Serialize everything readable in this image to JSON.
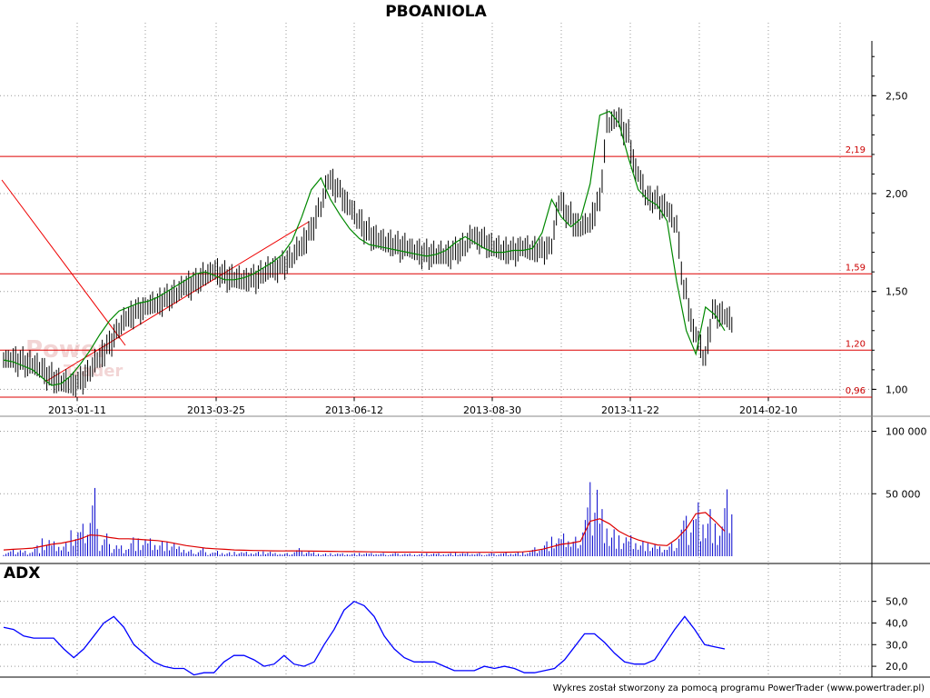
{
  "chart_data": [
    {
      "type": "line",
      "panel": "price",
      "title": "PBOANIOLA",
      "x_ticks": [
        "2013-01-11",
        "2013-03-25",
        "2013-06-12",
        "2013-08-30",
        "2013-11-22",
        "2014-02-10"
      ],
      "y_ticks": [
        "1,00",
        "1,50",
        "2,00",
        "2,50"
      ],
      "ylim": [
        0.96,
        2.78
      ],
      "grid": true,
      "levels": [
        {
          "value": 2.19,
          "label": "2,19"
        },
        {
          "value": 1.59,
          "label": "1,59"
        },
        {
          "value": 1.2,
          "label": "1,20"
        },
        {
          "value": 0.96,
          "label": "0,96"
        }
      ],
      "series": [
        {
          "values": [
            1.15,
            1.14,
            1.12,
            1.1,
            1.06,
            1.03,
            1.02,
            1.04,
            1.08,
            1.15,
            1.22,
            1.3,
            1.36,
            1.4,
            1.42,
            1.43,
            1.46,
            1.48,
            1.52,
            1.54,
            1.57,
            1.6,
            1.58,
            1.56,
            1.55,
            1.56,
            1.58,
            1.61,
            1.63,
            1.66,
            1.72,
            1.8,
            1.92,
            2.06,
            2.02,
            1.93,
            1.86,
            1.8,
            1.76,
            1.74,
            1.73,
            1.72,
            1.7,
            1.69,
            1.68,
            1.68,
            1.7,
            1.72,
            1.78,
            1.76,
            1.72,
            1.7,
            1.7,
            1.72,
            1.7,
            1.71,
            1.73,
            1.95,
            1.88,
            1.82,
            1.84,
            1.95,
            2.35,
            2.38,
            2.3,
            2.1,
            1.98,
            1.96,
            1.92,
            1.84,
            1.5,
            1.28,
            1.16,
            1.4,
            1.37,
            1.33
          ]
        },
        {
          "values": [
            1.15,
            1.14,
            1.12,
            1.1,
            1.06,
            1.02,
            1.03,
            1.07,
            1.13,
            1.2,
            1.28,
            1.35,
            1.4,
            1.42,
            1.44,
            1.45,
            1.47,
            1.5,
            1.53,
            1.56,
            1.59,
            1.6,
            1.58,
            1.56,
            1.56,
            1.57,
            1.59,
            1.62,
            1.65,
            1.69,
            1.76,
            1.88,
            2.02,
            2.08,
            1.97,
            1.89,
            1.82,
            1.77,
            1.74,
            1.73,
            1.72,
            1.71,
            1.7,
            1.69,
            1.68,
            1.69,
            1.71,
            1.75,
            1.78,
            1.75,
            1.72,
            1.7,
            1.7,
            1.71,
            1.71,
            1.72,
            1.8,
            1.97,
            1.88,
            1.83,
            1.87,
            2.05,
            2.4,
            2.42,
            2.36,
            2.18,
            2.02,
            1.97,
            1.94,
            1.86,
            1.55,
            1.3,
            1.18,
            1.42,
            1.38,
            1.3
          ]
        }
      ]
    },
    {
      "type": "bar",
      "panel": "volume",
      "y_ticks": [
        "50 000",
        "100 000"
      ],
      "ylim": [
        0,
        112000
      ],
      "values": [
        3000,
        5000,
        4000,
        8000,
        12000,
        10000,
        9000,
        16000,
        20000,
        42000,
        14000,
        9000,
        8000,
        14000,
        12000,
        12000,
        10000,
        9000,
        6000,
        4000,
        5000,
        3000,
        4000,
        3000,
        3000,
        3000,
        3000,
        3000,
        2000,
        2000,
        5000,
        4000,
        3000,
        2000,
        2000,
        2000,
        2000,
        2000,
        2000,
        2000,
        2000,
        2000,
        2000,
        2000,
        2000,
        2000,
        2000,
        2000,
        2000,
        2000,
        2000,
        2000,
        3000,
        3000,
        3000,
        6000,
        10000,
        12000,
        14000,
        12000,
        30000,
        55000,
        35000,
        20000,
        14000,
        14000,
        10000,
        8000,
        6000,
        8000,
        22000,
        30000,
        40000,
        35000,
        22000,
        45000
      ],
      "series": [
        {
          "values": [
            5000,
            5500,
            6000,
            6500,
            8000,
            9500,
            10500,
            12000,
            14000,
            17000,
            16500,
            15000,
            14000,
            14000,
            13500,
            13000,
            12500,
            11500,
            10000,
            8500,
            7500,
            6500,
            6000,
            5500,
            5000,
            4800,
            4600,
            4500,
            4300,
            4200,
            4300,
            4200,
            4100,
            4000,
            3900,
            3800,
            3700,
            3600,
            3500,
            3400,
            3300,
            3300,
            3300,
            3300,
            3200,
            3200,
            3200,
            3200,
            3100,
            3100,
            3100,
            3100,
            3200,
            3300,
            3500,
            4200,
            5500,
            7500,
            9500,
            10500,
            12000,
            28000,
            30000,
            26000,
            20000,
            16000,
            13000,
            11000,
            9000,
            8500,
            14000,
            22000,
            34000,
            35000,
            28000,
            20000
          ]
        }
      ]
    },
    {
      "type": "line",
      "panel": "adx",
      "title": "ADX",
      "y_ticks": [
        "20,0",
        "30,0",
        "40,0",
        "50,0"
      ],
      "ylim": [
        15,
        57
      ],
      "series": [
        {
          "values": [
            38,
            37,
            34,
            33,
            33,
            33,
            28,
            24,
            28,
            34,
            40,
            43,
            38,
            30,
            26,
            22,
            20,
            19,
            19,
            16,
            17,
            17,
            22,
            25,
            25,
            23,
            20,
            21,
            25,
            21,
            20,
            22,
            30,
            37,
            46,
            50,
            48,
            43,
            34,
            28,
            24,
            22,
            22,
            22,
            20,
            18,
            18,
            18,
            20,
            19,
            20,
            19,
            17,
            17,
            18,
            19,
            23,
            29,
            35,
            35,
            31,
            26,
            22,
            21,
            21,
            23,
            30,
            37,
            43,
            37,
            30,
            29,
            28
          ]
        }
      ]
    }
  ],
  "footer_text": "Wykres został stworzony za pomocą programu PowerTrader (www.powertrader.pl)",
  "watermark": {
    "line1": "Power",
    "line2": "Trader"
  },
  "colors": {
    "grid": "#999999",
    "bar": "#0000cc",
    "ma_line": "#008800",
    "levels": "#dd0000",
    "adx": "#0000ff",
    "volume_avg": "#dd0000"
  }
}
